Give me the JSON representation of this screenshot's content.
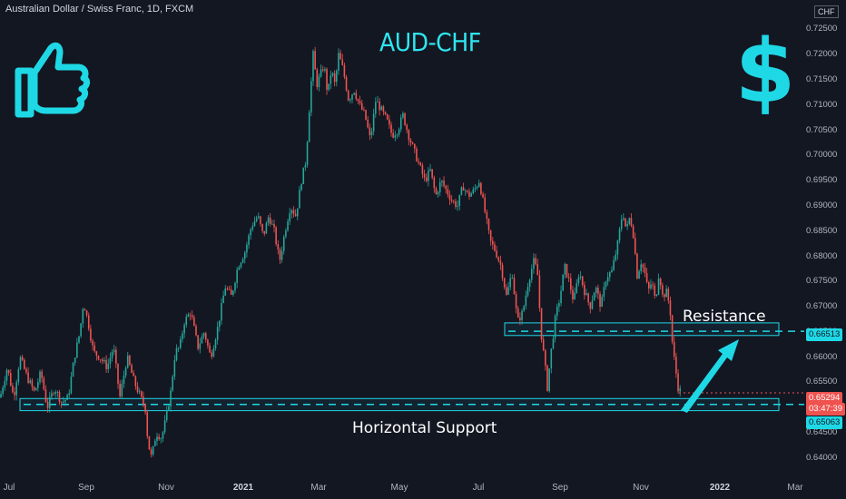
{
  "header": {
    "symbol_title": "Australian Dollar / Swiss Franc, 1D, FXCM",
    "currency_badge": "CHF",
    "chart_title": "AUD-CHF"
  },
  "annotations": {
    "resistance": "Resistance",
    "support": "Horizontal Support"
  },
  "price_tags": {
    "resistance_level": "0.66513",
    "current_price": "0.65294",
    "countdown": "03:47:39",
    "support_level": "0.65063"
  },
  "colors": {
    "background": "#131722",
    "up_candle": "#26a69a",
    "down_candle": "#ef5350",
    "accent": "#1fd8e6",
    "arrow": "#1fd8e6"
  },
  "icons": {
    "left": "thumbs-up-icon",
    "right": "dollar-sign-icon"
  },
  "chart_data": {
    "type": "candlestick",
    "title": "AUD-CHF",
    "ylim": [
      0.638,
      0.7265
    ],
    "y_ticks": [
      "0.72500",
      "0.72000",
      "0.71500",
      "0.71000",
      "0.70500",
      "0.70000",
      "0.69500",
      "0.69000",
      "0.68500",
      "0.68000",
      "0.67500",
      "0.67000",
      "0.66500",
      "0.66000",
      "0.65500",
      "0.65000",
      "0.64500",
      "0.64000"
    ],
    "x_ticks": [
      {
        "label": "Jul",
        "major": false
      },
      {
        "label": "Sep",
        "major": false
      },
      {
        "label": "Nov",
        "major": false
      },
      {
        "label": "2021",
        "major": true
      },
      {
        "label": "Mar",
        "major": false
      },
      {
        "label": "May",
        "major": false
      },
      {
        "label": "Jul",
        "major": false
      },
      {
        "label": "Sep",
        "major": false
      },
      {
        "label": "Nov",
        "major": false
      },
      {
        "label": "2022",
        "major": true
      },
      {
        "label": "Mar",
        "major": false
      }
    ],
    "close_path": [
      [
        0,
        0.652
      ],
      [
        8,
        0.658
      ],
      [
        15,
        0.652
      ],
      [
        22,
        0.66
      ],
      [
        30,
        0.656
      ],
      [
        38,
        0.653
      ],
      [
        45,
        0.657
      ],
      [
        52,
        0.65
      ],
      [
        60,
        0.654
      ],
      [
        68,
        0.651
      ],
      [
        75,
        0.652
      ],
      [
        82,
        0.66
      ],
      [
        88,
        0.665
      ],
      [
        92,
        0.671
      ],
      [
        97,
        0.667
      ],
      [
        103,
        0.661
      ],
      [
        110,
        0.66
      ],
      [
        118,
        0.658
      ],
      [
        125,
        0.662
      ],
      [
        132,
        0.652
      ],
      [
        140,
        0.66
      ],
      [
        148,
        0.655
      ],
      [
        155,
        0.652
      ],
      [
        160,
        0.65
      ],
      [
        163,
        0.643
      ],
      [
        167,
        0.64
      ],
      [
        172,
        0.645
      ],
      [
        178,
        0.644
      ],
      [
        183,
        0.648
      ],
      [
        188,
        0.653
      ],
      [
        193,
        0.661
      ],
      [
        198,
        0.662
      ],
      [
        203,
        0.667
      ],
      [
        210,
        0.669
      ],
      [
        218,
        0.662
      ],
      [
        225,
        0.665
      ],
      [
        232,
        0.66
      ],
      [
        240,
        0.666
      ],
      [
        248,
        0.674
      ],
      [
        255,
        0.672
      ],
      [
        262,
        0.678
      ],
      [
        270,
        0.681
      ],
      [
        277,
        0.686
      ],
      [
        284,
        0.688
      ],
      [
        290,
        0.684
      ],
      [
        296,
        0.688
      ],
      [
        302,
        0.685
      ],
      [
        308,
        0.679
      ],
      [
        314,
        0.685
      ],
      [
        320,
        0.69
      ],
      [
        326,
        0.688
      ],
      [
        332,
        0.695
      ],
      [
        337,
        0.699
      ],
      [
        341,
        0.71
      ],
      [
        345,
        0.72
      ],
      [
        349,
        0.714
      ],
      [
        353,
        0.716
      ],
      [
        357,
        0.718
      ],
      [
        361,
        0.712
      ],
      [
        365,
        0.717
      ],
      [
        369,
        0.714
      ],
      [
        373,
        0.72
      ],
      [
        378,
        0.717
      ],
      [
        384,
        0.711
      ],
      [
        390,
        0.713
      ],
      [
        396,
        0.71
      ],
      [
        402,
        0.708
      ],
      [
        408,
        0.703
      ],
      [
        414,
        0.711
      ],
      [
        420,
        0.709
      ],
      [
        426,
        0.707
      ],
      [
        432,
        0.704
      ],
      [
        438,
        0.705
      ],
      [
        444,
        0.708
      ],
      [
        450,
        0.704
      ],
      [
        456,
        0.701
      ],
      [
        462,
        0.698
      ],
      [
        468,
        0.695
      ],
      [
        474,
        0.697
      ],
      [
        480,
        0.692
      ],
      [
        486,
        0.695
      ],
      [
        492,
        0.693
      ],
      [
        498,
        0.691
      ],
      [
        504,
        0.69
      ],
      [
        510,
        0.694
      ],
      [
        516,
        0.692
      ],
      [
        522,
        0.693
      ],
      [
        528,
        0.695
      ],
      [
        534,
        0.689
      ],
      [
        540,
        0.683
      ],
      [
        546,
        0.681
      ],
      [
        552,
        0.678
      ],
      [
        558,
        0.672
      ],
      [
        564,
        0.677
      ],
      [
        570,
        0.667
      ],
      [
        576,
        0.669
      ],
      [
        582,
        0.675
      ],
      [
        588,
        0.679
      ],
      [
        592,
        0.677
      ],
      [
        596,
        0.665
      ],
      [
        600,
        0.659
      ],
      [
        603,
        0.654
      ],
      [
        607,
        0.661
      ],
      [
        612,
        0.668
      ],
      [
        617,
        0.672
      ],
      [
        622,
        0.678
      ],
      [
        627,
        0.675
      ],
      [
        632,
        0.671
      ],
      [
        638,
        0.677
      ],
      [
        644,
        0.673
      ],
      [
        650,
        0.67
      ],
      [
        656,
        0.674
      ],
      [
        662,
        0.67
      ],
      [
        668,
        0.676
      ],
      [
        674,
        0.677
      ],
      [
        680,
        0.682
      ],
      [
        686,
        0.689
      ],
      [
        690,
        0.685
      ],
      [
        694,
        0.688
      ],
      [
        698,
        0.684
      ],
      [
        702,
        0.676
      ],
      [
        706,
        0.679
      ],
      [
        710,
        0.677
      ],
      [
        714,
        0.673
      ],
      [
        718,
        0.675
      ],
      [
        722,
        0.671
      ],
      [
        726,
        0.677
      ],
      [
        730,
        0.672
      ],
      [
        734,
        0.673
      ],
      [
        738,
        0.67
      ],
      [
        741,
        0.662
      ],
      [
        744,
        0.658
      ],
      [
        747,
        0.654
      ],
      [
        751,
        0.6529
      ]
    ],
    "zones": [
      {
        "name": "resistance",
        "low": 0.6643,
        "high": 0.6668,
        "level": 0.66513
      },
      {
        "name": "support",
        "low": 0.6494,
        "high": 0.6518,
        "level": 0.65063
      }
    ],
    "current_price": 0.65294
  }
}
